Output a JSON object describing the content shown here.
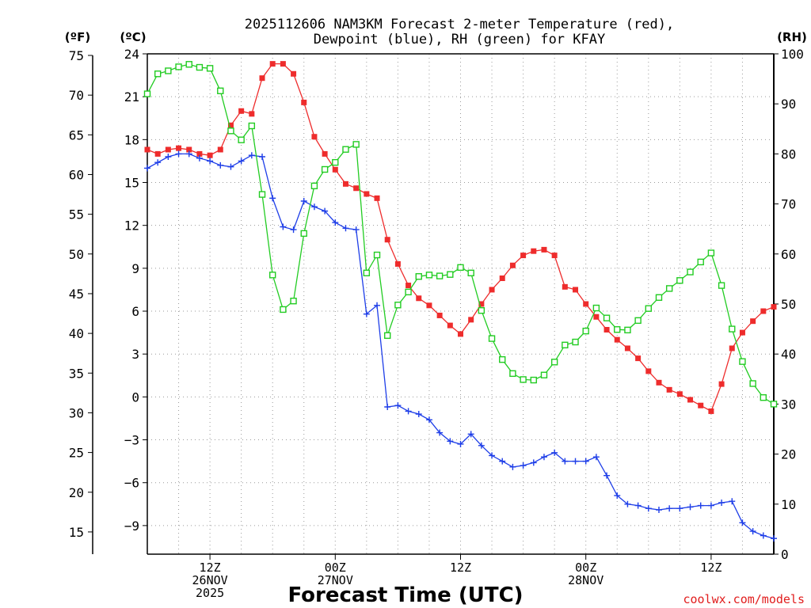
{
  "chart_data": {
    "type": "line",
    "title_line1": "2025112606 NAM3KM Forecast 2-meter Temperature (red),",
    "title_line2": "Dewpoint (blue), RH (green) for KFAY",
    "units": {
      "fahrenheit": "(ºF)",
      "celsius": "(ºC)",
      "rh": "(RH)"
    },
    "xlabel": "Forecast Time (UTC)",
    "credit": "coolwx.com/models",
    "colors": {
      "temperature": "#ee2c2c",
      "dewpoint": "#1e3ee8",
      "rh": "#22cc22"
    },
    "x_forecast_hours": [
      0,
      1,
      2,
      3,
      4,
      5,
      6,
      7,
      8,
      9,
      10,
      11,
      12,
      13,
      14,
      15,
      16,
      17,
      18,
      19,
      20,
      21,
      22,
      23,
      24,
      25,
      26,
      27,
      28,
      29,
      30,
      31,
      32,
      33,
      34,
      35,
      36,
      37,
      38,
      39,
      40,
      41,
      42,
      43,
      44,
      45,
      46,
      47,
      48,
      49,
      50,
      51,
      52,
      53,
      54,
      55,
      56,
      57,
      58,
      59,
      60
    ],
    "xlim_hours": [
      0,
      60
    ],
    "ylim_celsius": [
      -11,
      24
    ],
    "ylim_rh": [
      0,
      100
    ],
    "y_ticks_celsius": [
      24,
      21,
      18,
      15,
      12,
      9,
      6,
      3,
      0,
      -3,
      -6,
      -9
    ],
    "y_ticks_fahrenheit": [
      75,
      70,
      65,
      60,
      55,
      50,
      45,
      40,
      35,
      30,
      25,
      20,
      15
    ],
    "y_ticks_rh": [
      100,
      90,
      80,
      70,
      60,
      50,
      40,
      30,
      20,
      10,
      0
    ],
    "x_ticks": [
      {
        "hour": 6,
        "lines": [
          "12Z",
          "26NOV",
          "2025"
        ]
      },
      {
        "hour": 18,
        "lines": [
          "00Z",
          "27NOV"
        ]
      },
      {
        "hour": 30,
        "lines": [
          "12Z"
        ]
      },
      {
        "hour": 42,
        "lines": [
          "00Z",
          "28NOV"
        ]
      },
      {
        "hour": 54,
        "lines": [
          "12Z"
        ]
      }
    ],
    "series": [
      {
        "name": "Temperature (red)",
        "axis": "celsius",
        "values": [
          17.3,
          17.0,
          17.3,
          17.4,
          17.3,
          17.0,
          16.9,
          17.3,
          19.0,
          20.0,
          19.8,
          22.3,
          23.3,
          23.3,
          22.6,
          20.6,
          18.2,
          17.0,
          15.9,
          14.9,
          14.6,
          14.2,
          13.9,
          11.0,
          9.3,
          7.8,
          6.9,
          6.4,
          5.7,
          5.0,
          4.4,
          5.4,
          6.5,
          7.5,
          8.3,
          9.2,
          9.9,
          10.2,
          10.3,
          9.9,
          7.7,
          7.5,
          6.5,
          5.6,
          4.7,
          4.0,
          3.4,
          2.7,
          1.8,
          1.0,
          0.5,
          0.2,
          -0.2,
          -0.6,
          -1.0,
          0.9,
          3.4,
          4.5,
          5.3,
          6.0,
          6.3
        ]
      },
      {
        "name": "Dewpoint (blue)",
        "axis": "celsius",
        "values": [
          16.0,
          16.4,
          16.8,
          17.0,
          17.0,
          16.7,
          16.5,
          16.2,
          16.1,
          16.5,
          16.9,
          16.8,
          13.9,
          11.9,
          11.7,
          13.7,
          13.3,
          13.0,
          12.2,
          11.8,
          11.7,
          5.8,
          6.4,
          -0.7,
          -0.6,
          -1.0,
          -1.2,
          -1.6,
          -2.5,
          -3.1,
          -3.3,
          -2.6,
          -3.4,
          -4.1,
          -4.5,
          -4.9,
          -4.8,
          -4.6,
          -4.2,
          -3.9,
          -4.5,
          -4.5,
          -4.5,
          -4.2,
          -5.5,
          -6.9,
          -7.5,
          -7.6,
          -7.8,
          -7.9,
          -7.8,
          -7.8,
          -7.7,
          -7.6,
          -7.6,
          -7.4,
          -7.3,
          -8.8,
          -9.4,
          -9.7,
          -9.9
        ]
      },
      {
        "name": "RH (green)",
        "axis": "rh",
        "values": [
          92,
          96,
          96.6,
          97.4,
          97.9,
          97.3,
          97.1,
          92.6,
          84.6,
          82.8,
          85.6,
          71.9,
          55.8,
          48.9,
          50.6,
          64.1,
          73.6,
          76.9,
          78.3,
          80.9,
          81.9,
          56.2,
          59.8,
          43.7,
          49.8,
          52.4,
          55.5,
          55.8,
          55.6,
          55.9,
          57.3,
          56.2,
          48.7,
          43.1,
          38.9,
          36.1,
          34.9,
          34.8,
          35.8,
          38.4,
          41.8,
          42.4,
          44.6,
          49.2,
          47.2,
          44.9,
          44.8,
          46.7,
          49.1,
          51.3,
          53.1,
          54.7,
          56.4,
          58.4,
          60.2,
          53.7,
          45.0,
          38.5,
          34.1,
          31.3,
          30.0
        ]
      }
    ]
  }
}
